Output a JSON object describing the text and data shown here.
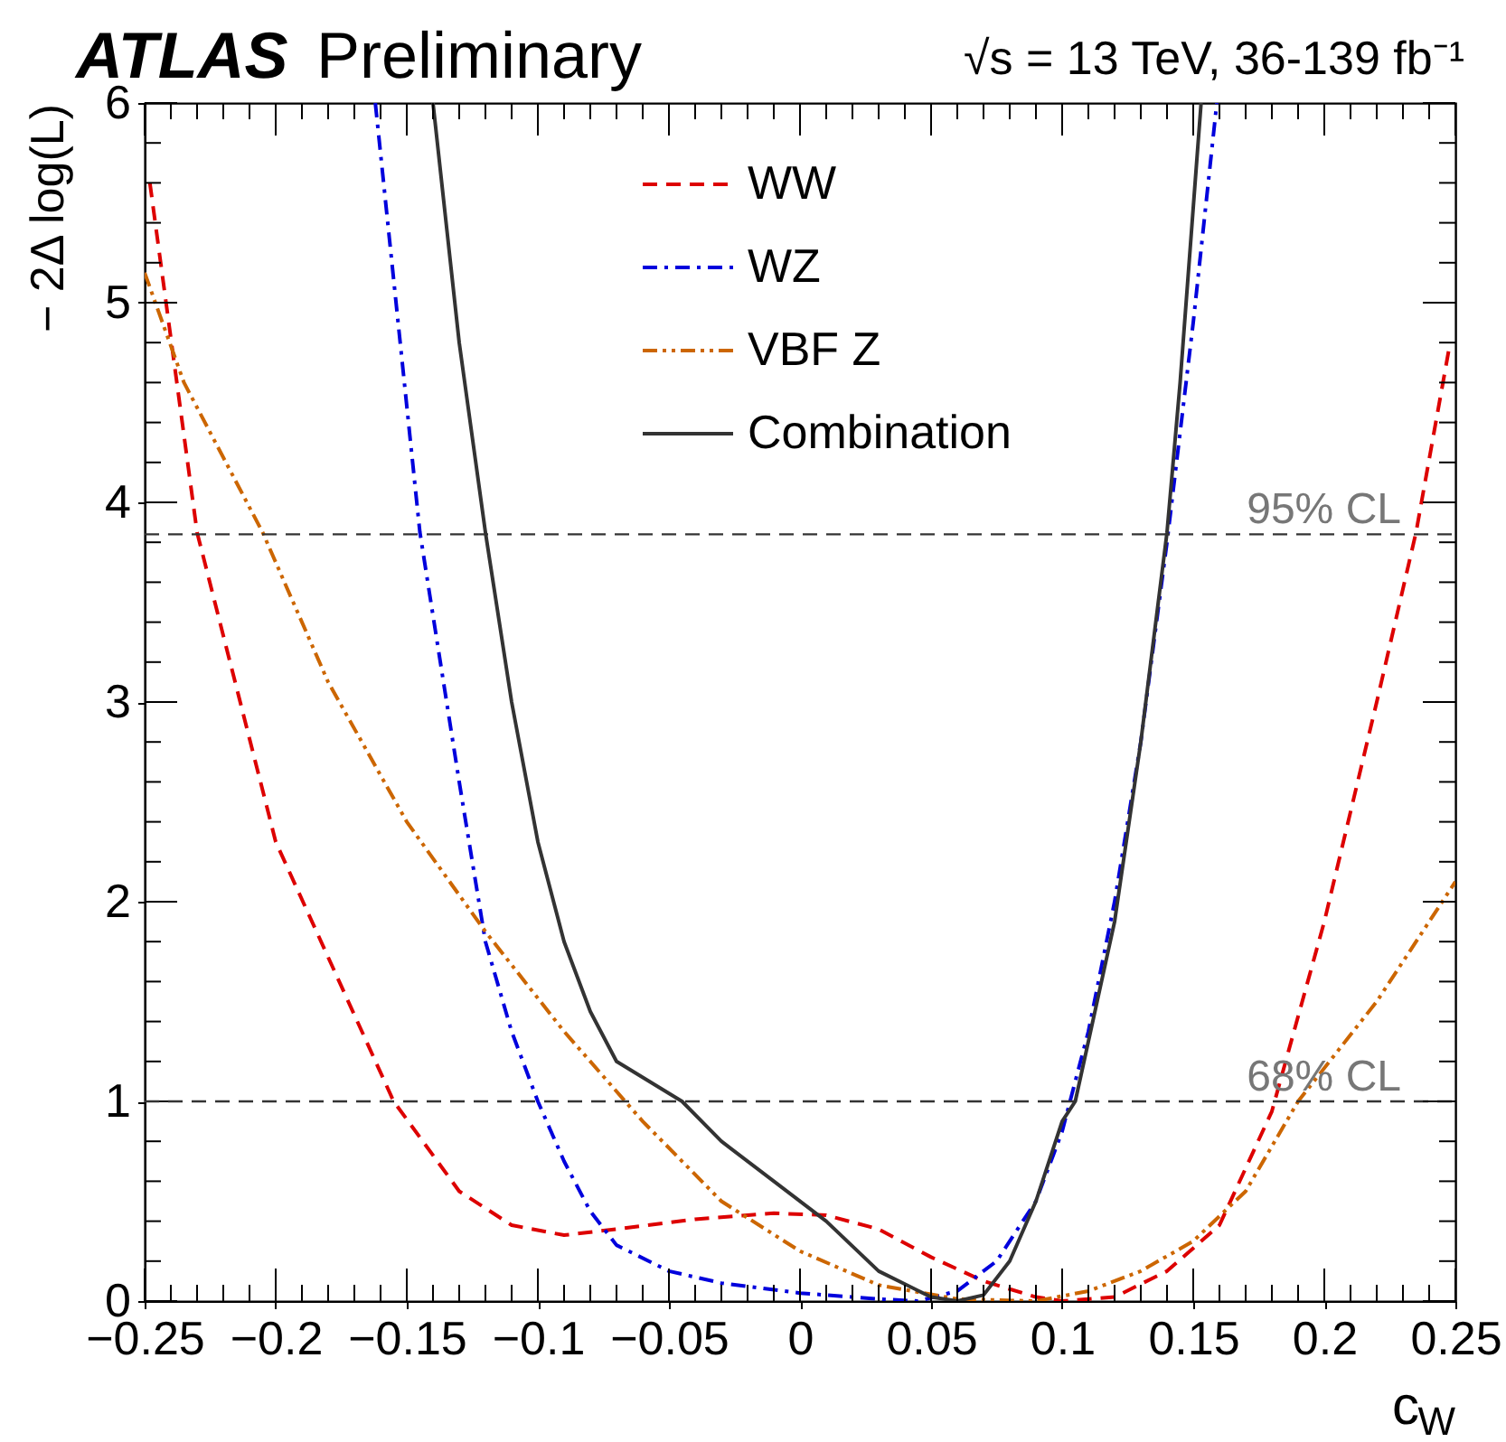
{
  "chart_data": {
    "type": "line",
    "title": "ATLAS Preliminary",
    "xlabel": "c$_{W}$",
    "ylabel": "− 2Δ log(L)",
    "annotations": [
      "√s = 13 TeV, 36-139 fb⁻¹"
    ],
    "xlim": [
      -0.25,
      0.25
    ],
    "xticks": [
      -0.25,
      -0.2,
      -0.15,
      -0.1,
      -0.05,
      0,
      0.05,
      0.1,
      0.15,
      0.2,
      0.25
    ],
    "ylim": [
      0,
      6
    ],
    "yticks": [
      0,
      1,
      2,
      3,
      4,
      5,
      6
    ],
    "grid": false,
    "legend": "top",
    "ref_lines": [
      {
        "axis": "y",
        "value": 3.84,
        "label": "95% CL",
        "color": "#333333",
        "line_style": "dashed"
      },
      {
        "axis": "y",
        "value": 1,
        "label": "68% CL",
        "color": "#333333",
        "line_style": "dashed"
      }
    ],
    "series": [
      {
        "name": "WW",
        "color": "#dd0000",
        "line_style": "dashed",
        "x": [
          -0.248,
          -0.23,
          -0.2,
          -0.155,
          -0.13,
          -0.11,
          -0.09,
          -0.07,
          -0.04,
          -0.01,
          0.01,
          0.03,
          0.05,
          0.07,
          0.09,
          0.1,
          0.12,
          0.14,
          0.16,
          0.18,
          0.2,
          0.22,
          0.235,
          0.248
        ],
        "values": [
          5.6,
          3.85,
          2.3,
          1.0,
          0.55,
          0.38,
          0.33,
          0.36,
          0.41,
          0.44,
          0.43,
          0.36,
          0.22,
          0.1,
          0.02,
          0.0,
          0.02,
          0.15,
          0.38,
          0.95,
          1.9,
          3.0,
          3.85,
          4.8
        ]
      },
      {
        "name": "WZ",
        "color": "#0000dd",
        "line_style": "dashdot",
        "x": [
          -0.162,
          -0.145,
          -0.13,
          -0.12,
          -0.11,
          -0.1,
          -0.09,
          -0.08,
          -0.07,
          -0.05,
          -0.03,
          0.0,
          0.03,
          0.045,
          0.06,
          0.075,
          0.09,
          0.1,
          0.11,
          0.12,
          0.13,
          0.14,
          0.15,
          0.159
        ],
        "values": [
          6.0,
          3.85,
          2.6,
          1.8,
          1.35,
          1.0,
          0.7,
          0.45,
          0.28,
          0.15,
          0.09,
          0.04,
          0.01,
          0.0,
          0.05,
          0.2,
          0.5,
          0.85,
          1.35,
          2.0,
          2.8,
          3.8,
          4.9,
          6.0
        ]
      },
      {
        "name": "VBF Z",
        "color": "#cc6600",
        "line_style": "dashdotdot",
        "x": [
          -0.25,
          -0.235,
          -0.205,
          -0.18,
          -0.15,
          -0.12,
          -0.09,
          -0.06,
          -0.03,
          0.0,
          0.03,
          0.06,
          0.09,
          0.11,
          0.13,
          0.15,
          0.17,
          0.19,
          0.22,
          0.25
        ],
        "values": [
          5.15,
          4.6,
          3.85,
          3.1,
          2.4,
          1.85,
          1.35,
          0.9,
          0.5,
          0.25,
          0.08,
          0.01,
          0.0,
          0.05,
          0.15,
          0.3,
          0.55,
          1.0,
          1.5,
          2.1
        ]
      },
      {
        "name": "Combination",
        "color": "#333333",
        "line_style": "solid",
        "x": [
          -0.14,
          -0.13,
          -0.12,
          -0.11,
          -0.1,
          -0.09,
          -0.08,
          -0.07,
          -0.045,
          -0.03,
          -0.01,
          0.01,
          0.03,
          0.05,
          0.06,
          0.07,
          0.08,
          0.09,
          0.1,
          0.105,
          0.12,
          0.13,
          0.14,
          0.145,
          0.153
        ],
        "values": [
          6.0,
          4.8,
          3.85,
          3.0,
          2.3,
          1.8,
          1.45,
          1.2,
          1.0,
          0.8,
          0.6,
          0.4,
          0.15,
          0.02,
          0.0,
          0.03,
          0.2,
          0.5,
          0.9,
          1.0,
          1.9,
          2.8,
          3.85,
          4.6,
          6.0
        ]
      }
    ]
  }
}
